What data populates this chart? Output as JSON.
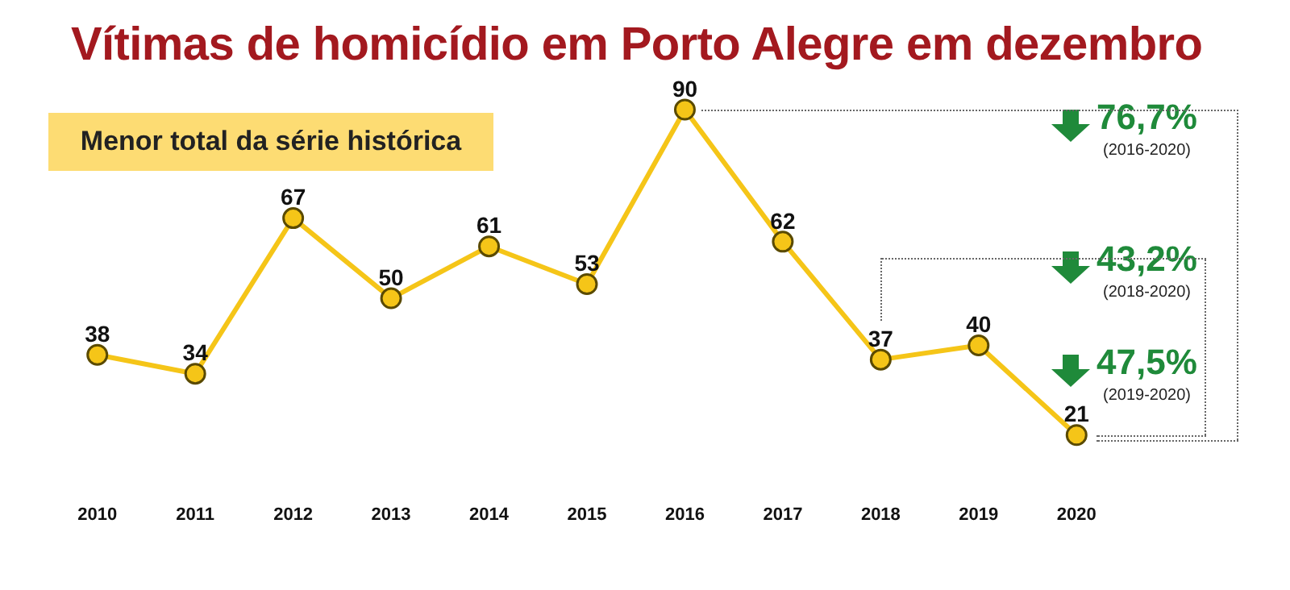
{
  "chart_data": {
    "type": "line",
    "title": "Vítimas de homicídio em Porto Alegre em dezembro",
    "categories": [
      "2010",
      "2011",
      "2012",
      "2013",
      "2014",
      "2015",
      "2016",
      "2017",
      "2018",
      "2019",
      "2020"
    ],
    "values": [
      38,
      34,
      67,
      50,
      61,
      53,
      90,
      62,
      37,
      40,
      21
    ],
    "color": "#f5c518",
    "marker": "circle",
    "line_style": "solid",
    "data_labels": true,
    "grid": false,
    "legend": false,
    "annotations": [
      "Menor total da série histórica",
      "76,7%",
      "(2016-2020)",
      "43,2%",
      "(2018-2020)",
      "47,5%",
      "(2019-2020)"
    ]
  }
}
